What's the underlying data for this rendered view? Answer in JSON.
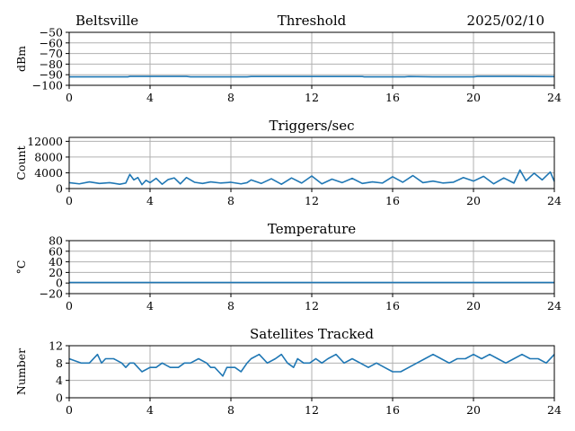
{
  "header": {
    "site": "Beltsville",
    "date": "2025/02/10"
  },
  "colors": {
    "series": "#1f77b4",
    "grid": "#b0b0b0"
  },
  "chart_data": [
    {
      "type": "line",
      "title": "Threshold",
      "ylabel": "dBm",
      "xlim": [
        0,
        24
      ],
      "ylim": [
        -100,
        -50
      ],
      "xticks": [
        0,
        4,
        8,
        12,
        16,
        20,
        24
      ],
      "yticks": [
        -100,
        -90,
        -80,
        -70,
        -60,
        -50
      ],
      "ytick_labels": [
        "−100",
        "−90",
        "−80",
        "−70",
        "−60",
        "−50"
      ],
      "grid": true,
      "series": [
        {
          "x": [
            0,
            2.9,
            3.0,
            5.8,
            6.0,
            8.8,
            9.0,
            14.5,
            14.6,
            16.6,
            16.8,
            18.0,
            19.0,
            20.0,
            20.2,
            22.0,
            24
          ],
          "y": [
            -92,
            -92,
            -91.6,
            -91.6,
            -92,
            -92,
            -91.7,
            -91.7,
            -92,
            -92,
            -91.7,
            -92,
            -92,
            -92,
            -91.6,
            -91.6,
            -91.8
          ]
        }
      ]
    },
    {
      "type": "line",
      "title": "Triggers/sec",
      "ylabel": "Count",
      "xlim": [
        0,
        24
      ],
      "ylim": [
        0,
        13000
      ],
      "xticks": [
        0,
        4,
        8,
        12,
        16,
        20,
        24
      ],
      "yticks": [
        0,
        4000,
        8000,
        12000
      ],
      "ytick_labels": [
        "0",
        "4000",
        "8000",
        "12000"
      ],
      "grid": true,
      "series": [
        {
          "x": [
            0,
            0.5,
            1.0,
            1.5,
            2.0,
            2.5,
            2.8,
            3.0,
            3.2,
            3.4,
            3.6,
            3.8,
            4.0,
            4.3,
            4.6,
            4.9,
            5.2,
            5.5,
            5.8,
            6.2,
            6.6,
            7.0,
            7.5,
            8.0,
            8.5,
            8.8,
            9.0,
            9.5,
            10.0,
            10.5,
            11.0,
            11.5,
            12.0,
            12.5,
            13.0,
            13.5,
            14.0,
            14.5,
            15.0,
            15.5,
            16.0,
            16.5,
            17.0,
            17.5,
            18.0,
            18.5,
            19.0,
            19.5,
            20.0,
            20.5,
            21.0,
            21.5,
            22.0,
            22.3,
            22.6,
            23.0,
            23.4,
            23.8,
            24
          ],
          "y": [
            1500,
            1200,
            1700,
            1300,
            1500,
            1100,
            1400,
            3600,
            2200,
            2800,
            1000,
            2100,
            1500,
            2600,
            1100,
            2300,
            2700,
            1200,
            2800,
            1600,
            1300,
            1700,
            1400,
            1600,
            1200,
            1500,
            2200,
            1300,
            2500,
            1100,
            2700,
            1400,
            3200,
            1200,
            2400,
            1500,
            2600,
            1300,
            1700,
            1400,
            3000,
            1600,
            3300,
            1500,
            1900,
            1400,
            1600,
            2800,
            1900,
            3100,
            1200,
            2700,
            1400,
            4700,
            2000,
            3900,
            2200,
            4200,
            1800
          ]
        }
      ]
    },
    {
      "type": "line",
      "title": "Temperature",
      "ylabel": "°C",
      "xlim": [
        0,
        24
      ],
      "ylim": [
        -20,
        80
      ],
      "xticks": [
        0,
        4,
        8,
        12,
        16,
        20,
        24
      ],
      "yticks": [
        -20,
        0,
        20,
        40,
        60,
        80
      ],
      "ytick_labels": [
        "−20",
        "0",
        "20",
        "40",
        "60",
        "80"
      ],
      "grid": true,
      "series": [
        {
          "x": [
            0,
            24
          ],
          "y": [
            1,
            1
          ]
        }
      ]
    },
    {
      "type": "line",
      "title": "Satellites Tracked",
      "ylabel": "Number",
      "xlim": [
        0,
        24
      ],
      "ylim": [
        0,
        12
      ],
      "xticks": [
        0,
        4,
        8,
        12,
        16,
        20,
        24
      ],
      "yticks": [
        0,
        4,
        8,
        12
      ],
      "ytick_labels": [
        "0",
        "4",
        "8",
        "12"
      ],
      "grid": true,
      "series": [
        {
          "x": [
            0,
            0.6,
            1.0,
            1.4,
            1.6,
            1.8,
            2.2,
            2.6,
            2.8,
            3.0,
            3.2,
            3.4,
            3.6,
            4.0,
            4.3,
            4.6,
            5.0,
            5.4,
            5.7,
            6.0,
            6.4,
            6.8,
            7.0,
            7.2,
            7.4,
            7.6,
            7.8,
            8.2,
            8.5,
            8.8,
            9.0,
            9.4,
            9.8,
            10.2,
            10.5,
            10.8,
            11.1,
            11.3,
            11.6,
            11.9,
            12.2,
            12.5,
            12.8,
            13.2,
            13.6,
            14.0,
            14.4,
            14.8,
            15.2,
            15.6,
            16.0,
            16.4,
            16.8,
            17.2,
            17.6,
            18.0,
            18.4,
            18.8,
            19.2,
            19.6,
            20.0,
            20.4,
            20.8,
            21.2,
            21.6,
            22.0,
            22.4,
            22.8,
            23.2,
            23.6,
            24
          ],
          "y": [
            9,
            8,
            8,
            10,
            8,
            9,
            9,
            8,
            7,
            8,
            8,
            7,
            6,
            7,
            7,
            8,
            7,
            7,
            8,
            8,
            9,
            8,
            7,
            7,
            6,
            5,
            7,
            7,
            6,
            8,
            9,
            10,
            8,
            9,
            10,
            8,
            7,
            9,
            8,
            8,
            9,
            8,
            9,
            10,
            8,
            9,
            8,
            7,
            8,
            7,
            6,
            6,
            7,
            8,
            9,
            10,
            9,
            8,
            9,
            9,
            10,
            9,
            10,
            9,
            8,
            9,
            10,
            9,
            9,
            8,
            10
          ]
        }
      ]
    }
  ]
}
